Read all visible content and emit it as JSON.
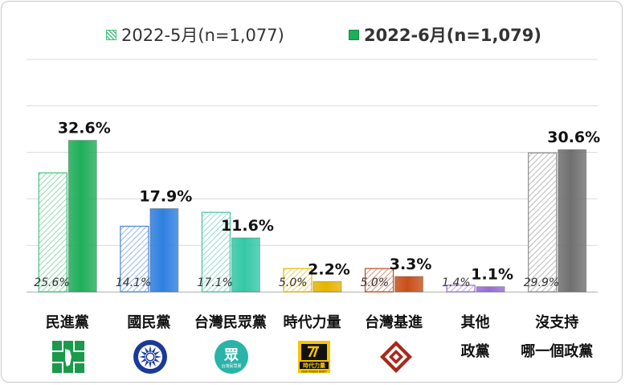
{
  "chart_data": {
    "type": "bar",
    "categories": [
      "民進黨",
      "國民黨",
      "台灣民眾黨",
      "時代力量",
      "台灣基進",
      "其他政黨",
      "沒支持哪一個政黨"
    ],
    "category_lines": [
      [
        "民進黨"
      ],
      [
        "國民黨"
      ],
      [
        "台灣民眾黨"
      ],
      [
        "時代力量"
      ],
      [
        "台灣基進"
      ],
      [
        "其他",
        "政黨"
      ],
      [
        "沒支持",
        "哪一個政黨"
      ]
    ],
    "series": [
      {
        "name": "2022-5月(n=1,077)",
        "values": [
          25.6,
          14.1,
          17.1,
          5.0,
          5.0,
          1.4,
          29.9
        ],
        "labels": [
          "25.6%",
          "14.1%",
          "17.1%",
          "5.0%",
          "5.0%",
          "1.4%",
          "29.9%"
        ],
        "style": "hatched"
      },
      {
        "name": "2022-6月(n=1,079)",
        "values": [
          32.6,
          17.9,
          11.6,
          2.2,
          3.3,
          1.1,
          30.6
        ],
        "labels": [
          "32.6%",
          "17.9%",
          "11.6%",
          "2.2%",
          "3.3%",
          "1.1%",
          "30.6%"
        ],
        "style": "solid"
      }
    ],
    "colors": [
      "#1fae5a",
      "#2f7fe0",
      "#35c8a6",
      "#e8b400",
      "#c8501a",
      "#9a6bd8",
      "#707070"
    ],
    "hatch_colors": [
      "#42c27a",
      "#4a86d8",
      "#45c4a8",
      "#e8b400",
      "#c04a1a",
      "#9a6bd8",
      "#8a8a8a"
    ],
    "ylim": [
      0,
      50
    ],
    "grid": true,
    "legend_position": "top-center"
  },
  "legend": {
    "may_label": "2022-5月(n=1,077)",
    "june_label": "2022-6月(n=1,079)"
  },
  "logos": {
    "tpp_text": "眾",
    "tpp_sub": "台灣民眾黨",
    "npp_text": "時代力量",
    "npp_sub": "NEW POWER PARTY"
  }
}
